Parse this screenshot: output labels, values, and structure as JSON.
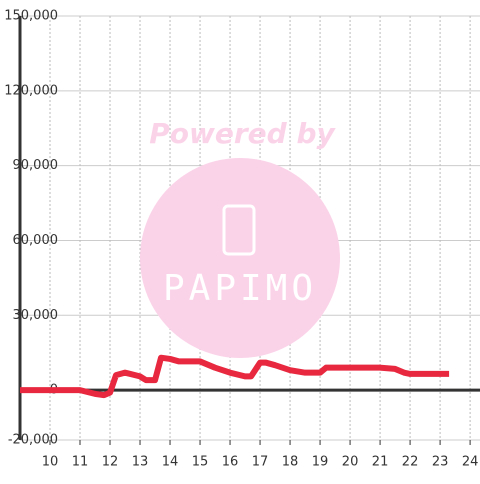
{
  "chart_data": {
    "type": "line",
    "x": [
      9,
      11,
      11.5,
      11.8,
      12,
      12.2,
      12.5,
      13,
      13.2,
      13.5,
      13.7,
      14,
      14.3,
      15,
      15.5,
      16,
      16.5,
      16.7,
      17,
      17.2,
      17.5,
      18,
      18.5,
      19,
      19.2,
      20,
      21,
      21.5,
      21.8,
      22,
      23.3
    ],
    "series": [
      {
        "color": "#e8283f",
        "values": [
          0,
          0,
          -1500,
          -2000,
          -1000,
          6000,
          7000,
          5500,
          4000,
          4000,
          13000,
          12500,
          11500,
          11500,
          9000,
          7000,
          5500,
          5500,
          11000,
          11000,
          10000,
          8000,
          7000,
          7000,
          9000,
          9000,
          9000,
          8500,
          7000,
          6500,
          6500
        ]
      }
    ],
    "xlim": [
      9,
      24.33
    ],
    "xticks": [
      10,
      11,
      12,
      13,
      14,
      15,
      16,
      17,
      18,
      19,
      20,
      21,
      22,
      23,
      24
    ],
    "ylim": [
      -20000,
      150000
    ],
    "yticks": [
      {
        "value": -20000,
        "label": "-20,000"
      },
      0,
      {
        "value": 30000,
        "label": "30,000"
      },
      {
        "value": 60000,
        "label": "60,000"
      },
      {
        "value": 90000,
        "label": "90,000"
      },
      {
        "value": 120000,
        "label": "120,000"
      },
      {
        "value": 150000,
        "label": "150,000"
      }
    ],
    "grid": true
  },
  "watermark": {
    "line1": "Powered by",
    "line2": "PAPIMO"
  }
}
